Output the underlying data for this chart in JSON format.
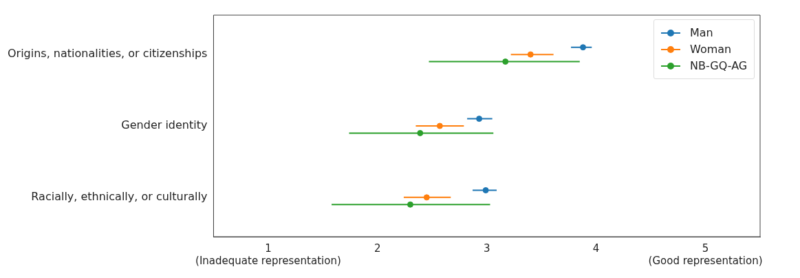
{
  "chart_data": {
    "type": "scatter",
    "orientation": "horizontal",
    "categories": [
      "Origins, nationalities, or citizenships",
      "Gender identity",
      "Racially, ethnically, or culturally"
    ],
    "series": [
      {
        "name": "Man",
        "color": "#1f77b4",
        "values": [
          3.88,
          2.93,
          2.99
        ],
        "errors": [
          [
            3.77,
            3.96
          ],
          [
            2.82,
            3.05
          ],
          [
            2.87,
            3.09
          ]
        ]
      },
      {
        "name": "Woman",
        "color": "#ff7f0e",
        "values": [
          3.4,
          2.57,
          2.45
        ],
        "errors": [
          [
            3.22,
            3.61
          ],
          [
            2.35,
            2.79
          ],
          [
            2.24,
            2.67
          ]
        ]
      },
      {
        "name": "NB-GQ-AG",
        "color": "#2ca02c",
        "values": [
          3.17,
          2.39,
          2.3
        ],
        "errors": [
          [
            2.47,
            3.85
          ],
          [
            1.74,
            3.06
          ],
          [
            1.58,
            3.03
          ]
        ]
      }
    ],
    "xlim": [
      0.5,
      5.5
    ],
    "xticks": [
      {
        "value": 1,
        "label": "1\n(Inadequate representation)"
      },
      2,
      3,
      4,
      {
        "value": 5,
        "label": "5\n(Good representation)"
      }
    ],
    "marker": "circle",
    "legend": "top right",
    "grid": false
  }
}
